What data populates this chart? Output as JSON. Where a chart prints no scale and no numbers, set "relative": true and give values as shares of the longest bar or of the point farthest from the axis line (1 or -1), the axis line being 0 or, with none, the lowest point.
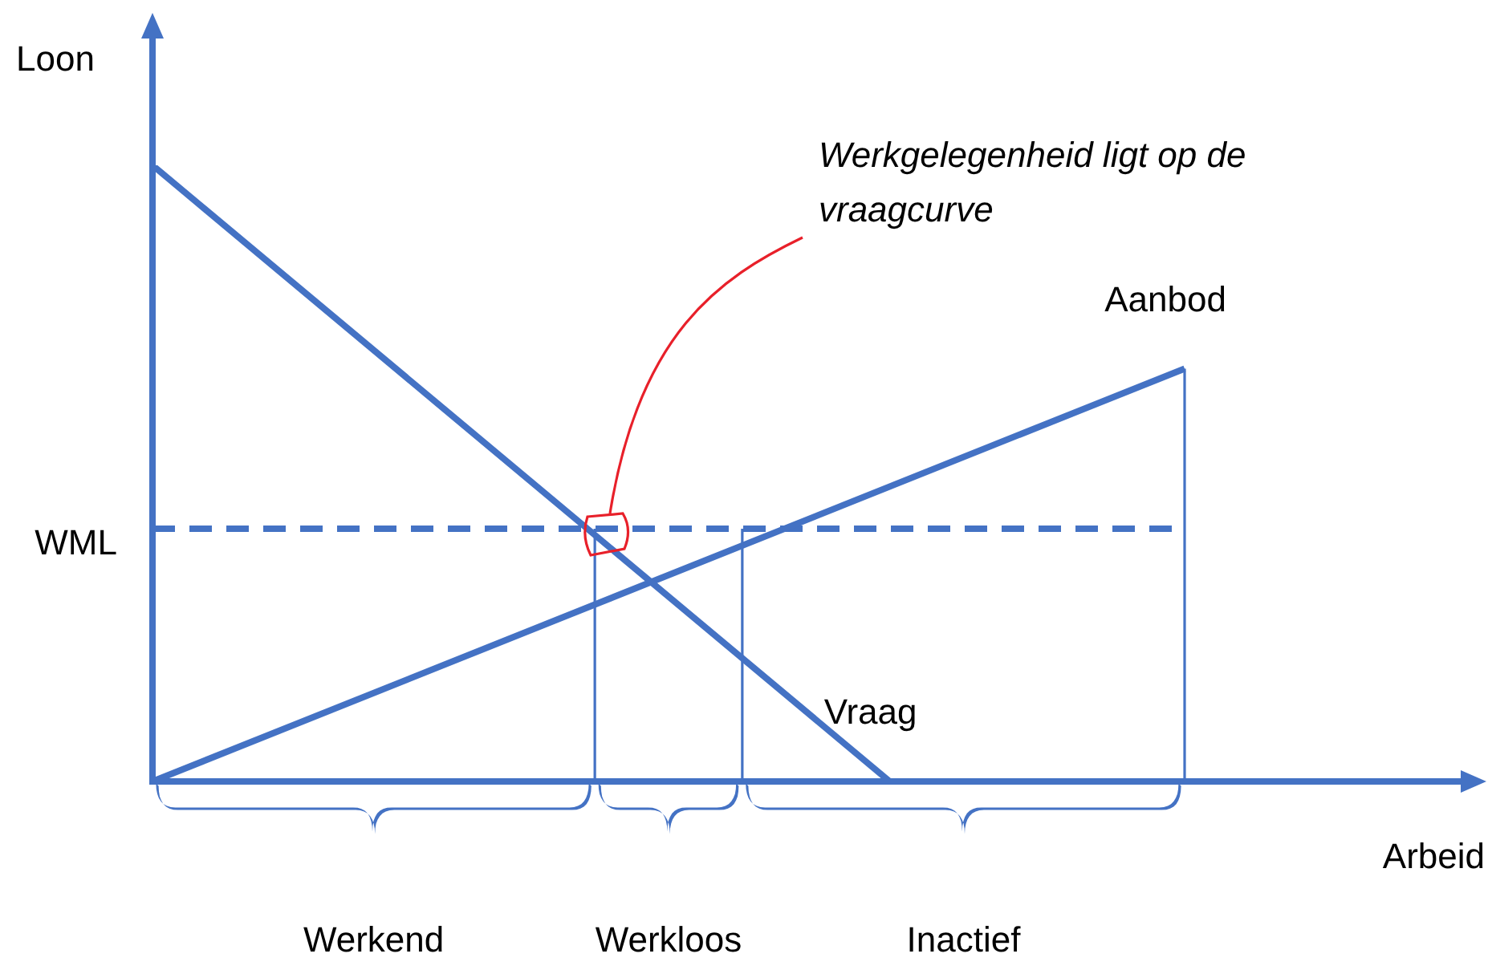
{
  "chart_data": {
    "type": "line",
    "relative": true,
    "ylabel": "Loon",
    "legend": false,
    "marker": "none",
    "categories": [
      null,
      null,
      null,
      null,
      null,
      null,
      null,
      null
    ],
    "series": [
      {
        "name": "Vraag",
        "color": "#4472c4",
        "values": [
          1,
          null,
          null,
          null,
          null,
          0,
          null,
          null
        ]
      },
      {
        "name": "Aanbod",
        "color": "#4472c4",
        "values": [
          0,
          null,
          null,
          null,
          null,
          null,
          null,
          0.67
        ]
      },
      {
        "name": "WML",
        "color": "#4472c4",
        "values": [
          0.41,
          null,
          null,
          null,
          null,
          null,
          null,
          0.41
        ],
        "line_style": "dashed"
      }
    ],
    "ref_lines": [
      {
        "axis": "y",
        "value": 0,
        "color": "#4472c4"
      }
    ],
    "annotations": [
      "Werkgelegenheid ligt op de vraagcurve",
      "Werkend",
      "Werkloos",
      "Inactief",
      "Arbeid"
    ]
  }
}
